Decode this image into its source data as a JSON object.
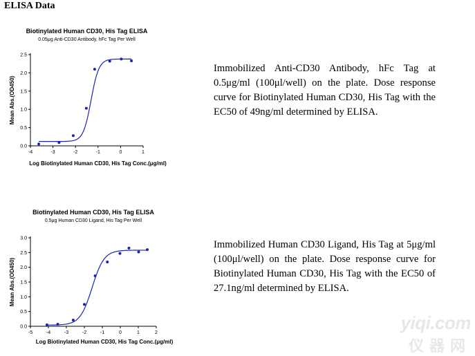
{
  "page_title": "ELISA Data",
  "panels": [
    {
      "description": "Immobilized Anti-CD30 Antibody, hFc Tag at 0.5μg/ml (100μl/well) on the plate. Dose response curve for Biotinylated Human CD30, His Tag with the EC50 of 49ng/ml determined by ELISA."
    },
    {
      "description": "Immobilized Human CD30 Ligand, His Tag at 5μg/ml (100μl/well) on the plate. Dose response curve for Biotinylated Human CD30, His Tag with the EC50 of 27.1ng/ml determined by ELISA."
    }
  ],
  "chart_data": [
    {
      "type": "scatter",
      "title": "Biotinylated Human CD30, His Tag ELISA",
      "subtitle": "0.05μg Anti-CD30 Antibody, hFc Tag Per Well",
      "xlabel": "Log Biotinylated Human CD30, His Tag Conc.(μg/ml)",
      "ylabel": "Mean Abs.(OD450)",
      "xlim": [
        -4,
        1
      ],
      "ylim": [
        0,
        2.5
      ],
      "xticks": [
        -4,
        -3,
        -2,
        -1,
        0,
        1
      ],
      "yticks": [
        0,
        0.5,
        1.0,
        1.5,
        2.0,
        2.5
      ],
      "ytick_labels": [
        "0.0",
        "0.5",
        "1.0",
        "1.5",
        "2.0",
        "2.5"
      ],
      "points": [
        {
          "x": -3.63,
          "y": 0.05
        },
        {
          "x": -2.73,
          "y": 0.09
        },
        {
          "x": -2.1,
          "y": 0.28
        },
        {
          "x": -1.52,
          "y": 1.03
        },
        {
          "x": -1.15,
          "y": 2.1
        },
        {
          "x": -0.48,
          "y": 2.32
        },
        {
          "x": 0.03,
          "y": 2.38
        },
        {
          "x": 0.48,
          "y": 2.33
        }
      ],
      "fit": {
        "model": "4PL",
        "bottom": 0.12,
        "top": 2.38,
        "log_ec50": -1.31,
        "hill": 2.5
      },
      "color": "#1a24b0"
    },
    {
      "type": "scatter",
      "title": "Biotinylated Human CD30, His Tag ELISA",
      "subtitle": "0.5μg Human CD30 Ligand, His Tag Per Well",
      "xlabel": "Log Biotinylated Human CD30, His Tag Conc.(μg/ml)",
      "ylabel": "Mean Abs.(OD450)",
      "xlim": [
        -5,
        2
      ],
      "ylim": [
        0,
        3.0
      ],
      "xticks": [
        -5,
        -4,
        -3,
        -2,
        -1,
        0,
        1,
        2
      ],
      "yticks": [
        0,
        0.5,
        1.0,
        1.5,
        2.0,
        2.5,
        3.0
      ],
      "ytick_labels": [
        "0.0",
        "0.5",
        "1.0",
        "1.5",
        "2.0",
        "2.5",
        "3.0"
      ],
      "points": [
        {
          "x": -4.08,
          "y": 0.05
        },
        {
          "x": -3.48,
          "y": 0.07
        },
        {
          "x": -2.62,
          "y": 0.21
        },
        {
          "x": -2.0,
          "y": 0.74
        },
        {
          "x": -1.4,
          "y": 1.71
        },
        {
          "x": -0.72,
          "y": 2.18
        },
        {
          "x": -0.02,
          "y": 2.47
        },
        {
          "x": 0.48,
          "y": 2.65
        },
        {
          "x": 1.02,
          "y": 2.52
        },
        {
          "x": 1.5,
          "y": 2.6
        }
      ],
      "fit": {
        "model": "4PL",
        "bottom": 0.04,
        "top": 2.58,
        "log_ec50": -1.57,
        "hill": 1.3
      },
      "color": "#1a24b0"
    }
  ],
  "watermark": {
    "domain": "yiqi.com",
    "chinese": "仪器网"
  }
}
